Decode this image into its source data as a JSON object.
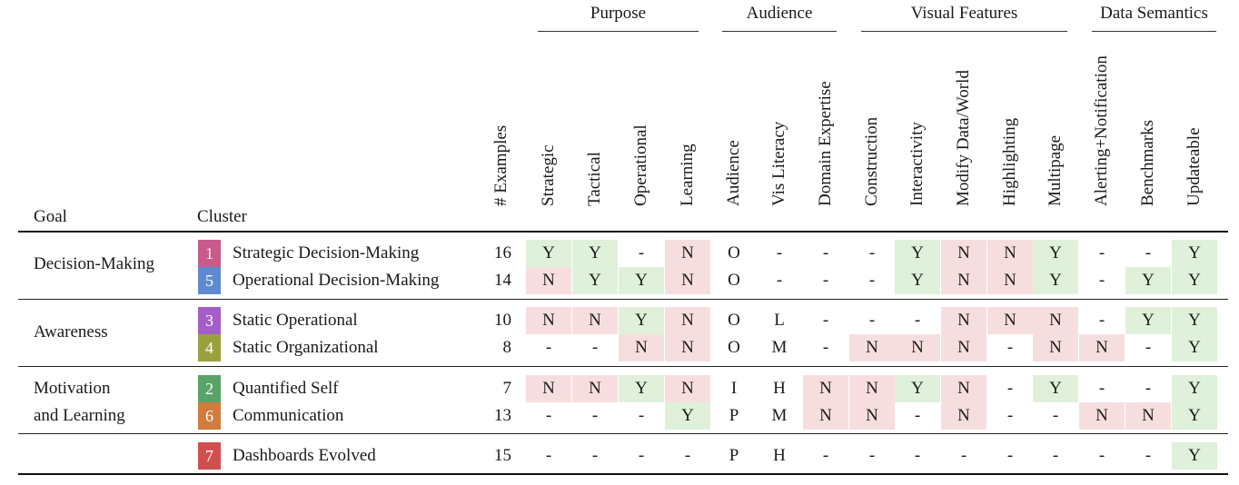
{
  "groups": [
    {
      "label": "Purpose"
    },
    {
      "label": "Audience"
    },
    {
      "label": "Visual Features"
    },
    {
      "label": "Data Semantics"
    }
  ],
  "header": {
    "goal": "Goal",
    "cluster": "Cluster",
    "examples": "# Examples"
  },
  "columns": [
    "Strategic",
    "Tactical",
    "Operational",
    "Learning",
    "Audience",
    "Vis Literacy",
    "Domain Expertise",
    "Construction",
    "Interactivity",
    "Modify Data/World",
    "Highlighting",
    "Multipage",
    "Alerting+Notification",
    "Benchmarks",
    "Updateable"
  ],
  "colors": {
    "yes_bg": "#dff1da",
    "no_bg": "#f7dede"
  },
  "goals": [
    {
      "label": "Decision-Making"
    },
    {
      "label": "Awareness"
    },
    {
      "label": "Motivation and Learning"
    }
  ],
  "rows": [
    {
      "num": "1",
      "badge_color": "#c95a8c",
      "name": "Strategic Decision-Making",
      "examples": "16",
      "values": [
        "Y",
        "Y",
        "-",
        "N",
        "O",
        "-",
        "-",
        "-",
        "Y",
        "N",
        "N",
        "Y",
        "-",
        "-",
        "Y"
      ]
    },
    {
      "num": "5",
      "badge_color": "#5e8bd0",
      "name": "Operational Decision-Making",
      "examples": "14",
      "values": [
        "N",
        "Y",
        "Y",
        "N",
        "O",
        "-",
        "-",
        "-",
        "Y",
        "N",
        "N",
        "Y",
        "-",
        "Y",
        "Y"
      ]
    },
    {
      "num": "3",
      "badge_color": "#a55ec8",
      "name": "Static Operational",
      "examples": "10",
      "values": [
        "N",
        "N",
        "Y",
        "N",
        "O",
        "L",
        "-",
        "-",
        "-",
        "N",
        "N",
        "N",
        "-",
        "Y",
        "Y"
      ]
    },
    {
      "num": "4",
      "badge_color": "#9ba03e",
      "name": "Static Organizational",
      "examples": "8",
      "values": [
        "-",
        "-",
        "N",
        "N",
        "O",
        "M",
        "-",
        "N",
        "N",
        "N",
        "-",
        "N",
        "N",
        "-",
        "Y"
      ]
    },
    {
      "num": "2",
      "badge_color": "#5aa366",
      "name": "Quantified Self",
      "examples": "7",
      "values": [
        "N",
        "N",
        "Y",
        "N",
        "I",
        "H",
        "N",
        "N",
        "Y",
        "N",
        "-",
        "Y",
        "-",
        "-",
        "Y"
      ]
    },
    {
      "num": "6",
      "badge_color": "#d07c3e",
      "name": "Communication",
      "examples": "13",
      "values": [
        "-",
        "-",
        "-",
        "Y",
        "P",
        "M",
        "N",
        "N",
        "-",
        "N",
        "-",
        "-",
        "N",
        "N",
        "Y"
      ]
    },
    {
      "num": "7",
      "badge_color": "#d24f4f",
      "name": "Dashboards Evolved",
      "examples": "15",
      "values": [
        "-",
        "-",
        "-",
        "-",
        "P",
        "H",
        "-",
        "-",
        "-",
        "-",
        "-",
        "-",
        "-",
        "-",
        "Y"
      ]
    }
  ]
}
